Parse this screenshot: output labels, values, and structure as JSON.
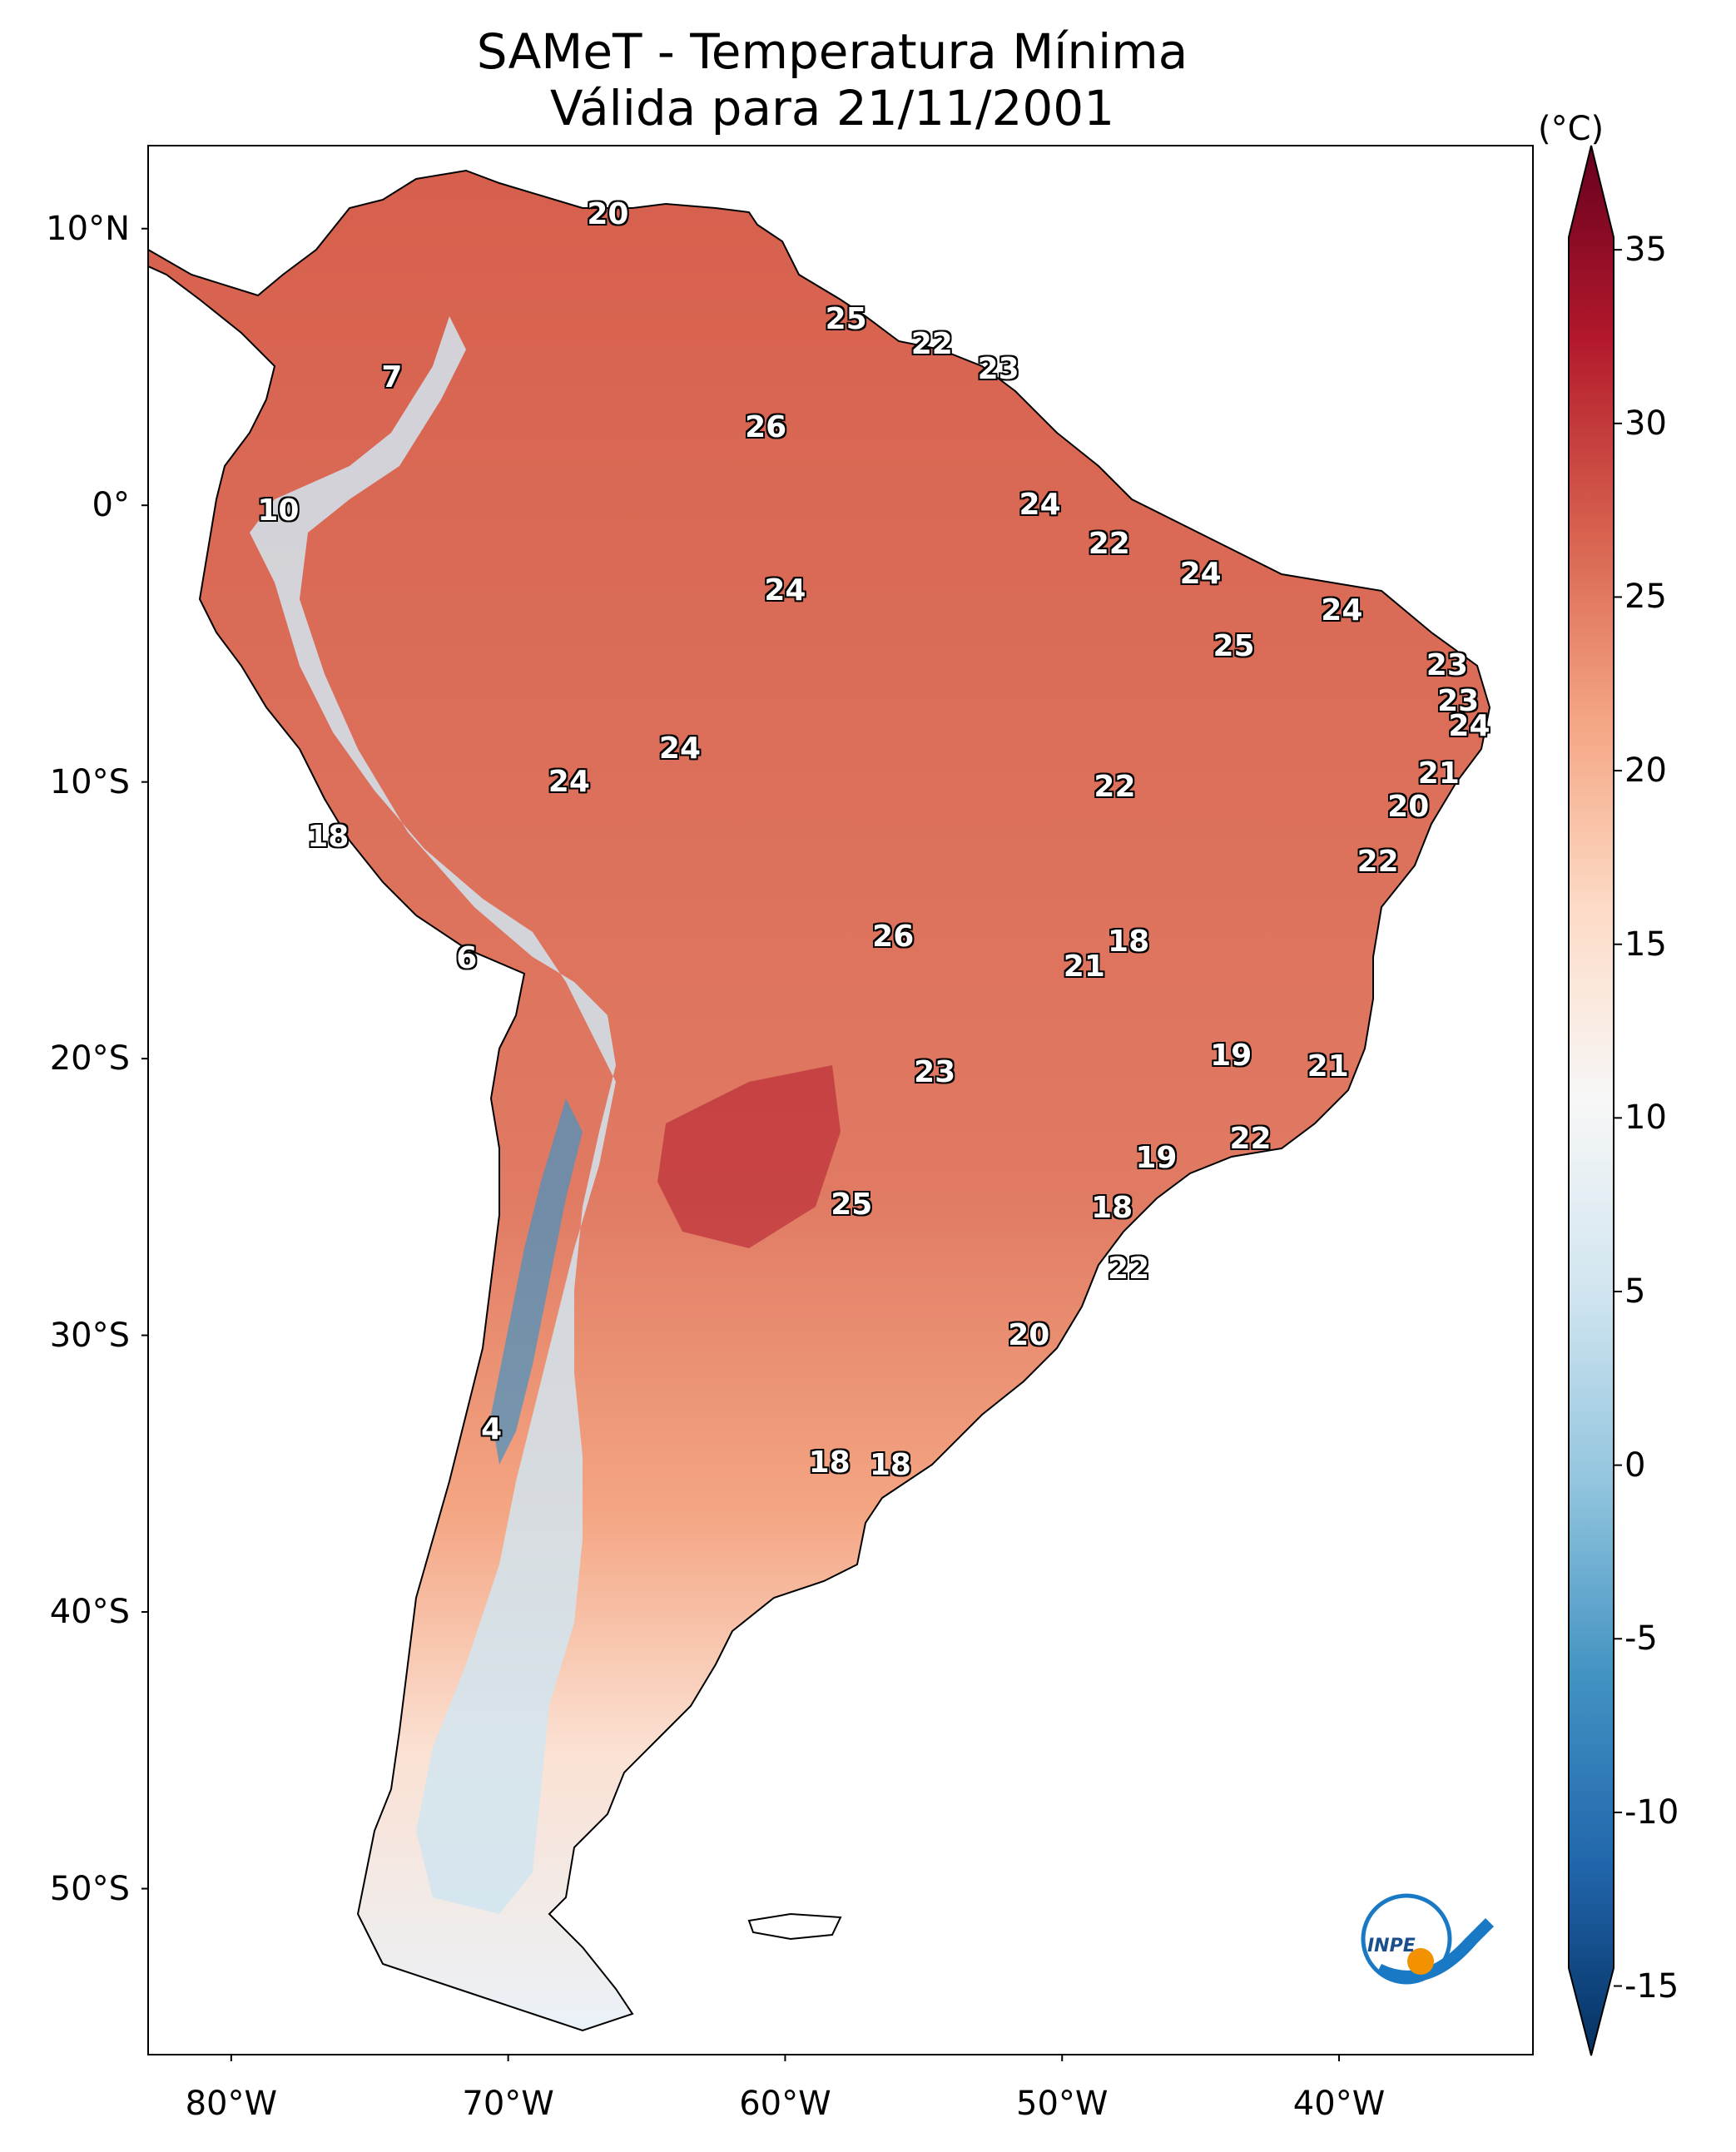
{
  "title": {
    "line1": "SAMeT - Temperatura Mínima",
    "line2": "Válida para 21/11/2001"
  },
  "colorbar": {
    "unit": "(°C)",
    "ticks": [
      {
        "value": 35,
        "label": "35"
      },
      {
        "value": 30,
        "label": "30"
      },
      {
        "value": 25,
        "label": "25"
      },
      {
        "value": 20,
        "label": "20"
      },
      {
        "value": 15,
        "label": "15"
      },
      {
        "value": 10,
        "label": "10"
      },
      {
        "value": 5,
        "label": "5"
      },
      {
        "value": 0,
        "label": "0"
      },
      {
        "value": -5,
        "label": "-5"
      },
      {
        "value": -10,
        "label": "-10"
      },
      {
        "value": -15,
        "label": "-15"
      }
    ],
    "range": [
      -17,
      38
    ],
    "colors": [
      "#053061",
      "#2166ac",
      "#4393c3",
      "#92c5de",
      "#d1e5f0",
      "#f7f7f7",
      "#fddbc7",
      "#f4a582",
      "#d6604d",
      "#b2182b",
      "#67001f"
    ]
  },
  "axes": {
    "lat_labels": [
      {
        "value": 10,
        "label": "10°N"
      },
      {
        "value": 0,
        "label": "0°"
      },
      {
        "value": -10,
        "label": "10°S"
      },
      {
        "value": -20,
        "label": "20°S"
      },
      {
        "value": -30,
        "label": "30°S"
      },
      {
        "value": -40,
        "label": "40°S"
      },
      {
        "value": -50,
        "label": "50°S"
      }
    ],
    "lon_labels": [
      {
        "value": -80,
        "label": "80°W"
      },
      {
        "value": -70,
        "label": "70°W"
      },
      {
        "value": -60,
        "label": "60°W"
      },
      {
        "value": -50,
        "label": "50°W"
      },
      {
        "value": -40,
        "label": "40°W"
      }
    ],
    "lon_range": [
      -83,
      -33
    ],
    "lat_range": [
      -56,
      13
    ]
  },
  "logo": {
    "text": "INPE"
  },
  "city_values": [
    {
      "lon": -66.4,
      "lat": 10.5,
      "label": "20"
    },
    {
      "lon": -57.8,
      "lat": 6.7,
      "label": "25"
    },
    {
      "lon": -54.7,
      "lat": 5.8,
      "label": "22"
    },
    {
      "lon": -52.3,
      "lat": 4.9,
      "label": "23"
    },
    {
      "lon": -74.2,
      "lat": 4.6,
      "label": "7"
    },
    {
      "lon": -60.7,
      "lat": 2.8,
      "label": "26"
    },
    {
      "lon": -78.3,
      "lat": -0.2,
      "label": "10"
    },
    {
      "lon": -50.8,
      "lat": -0.0,
      "label": "24"
    },
    {
      "lon": -48.3,
      "lat": -1.4,
      "label": "22"
    },
    {
      "lon": -60.0,
      "lat": -3.1,
      "label": "24"
    },
    {
      "lon": -45.0,
      "lat": -2.5,
      "label": "24"
    },
    {
      "lon": -39.9,
      "lat": -3.8,
      "label": "24"
    },
    {
      "lon": -43.8,
      "lat": -5.1,
      "label": "25"
    },
    {
      "lon": -36.1,
      "lat": -5.8,
      "label": "23"
    },
    {
      "lon": -35.7,
      "lat": -7.1,
      "label": "23"
    },
    {
      "lon": -35.3,
      "lat": -8.0,
      "label": "24"
    },
    {
      "lon": -63.8,
      "lat": -8.8,
      "label": "24"
    },
    {
      "lon": -36.4,
      "lat": -9.7,
      "label": "21"
    },
    {
      "lon": -67.8,
      "lat": -10.0,
      "label": "24"
    },
    {
      "lon": -48.1,
      "lat": -10.2,
      "label": "22"
    },
    {
      "lon": -37.5,
      "lat": -10.9,
      "label": "20"
    },
    {
      "lon": -76.5,
      "lat": -12.0,
      "label": "18"
    },
    {
      "lon": -38.6,
      "lat": -12.9,
      "label": "22"
    },
    {
      "lon": -56.1,
      "lat": -15.6,
      "label": "26"
    },
    {
      "lon": -47.6,
      "lat": -15.8,
      "label": "18"
    },
    {
      "lon": -49.2,
      "lat": -16.7,
      "label": "21"
    },
    {
      "lon": -71.5,
      "lat": -16.4,
      "label": "6"
    },
    {
      "lon": -43.9,
      "lat": -19.9,
      "label": "19"
    },
    {
      "lon": -54.6,
      "lat": -20.5,
      "label": "23"
    },
    {
      "lon": -40.4,
      "lat": -20.3,
      "label": "21"
    },
    {
      "lon": -43.2,
      "lat": -22.9,
      "label": "22"
    },
    {
      "lon": -46.6,
      "lat": -23.6,
      "label": "19"
    },
    {
      "lon": -57.6,
      "lat": -25.3,
      "label": "25"
    },
    {
      "lon": -48.2,
      "lat": -25.4,
      "label": "18"
    },
    {
      "lon": -47.6,
      "lat": -27.6,
      "label": "22"
    },
    {
      "lon": -51.2,
      "lat": -30.0,
      "label": "20"
    },
    {
      "lon": -70.6,
      "lat": -33.4,
      "label": "4"
    },
    {
      "lon": -58.4,
      "lat": -34.6,
      "label": "18"
    },
    {
      "lon": -56.2,
      "lat": -34.7,
      "label": "18"
    }
  ]
}
